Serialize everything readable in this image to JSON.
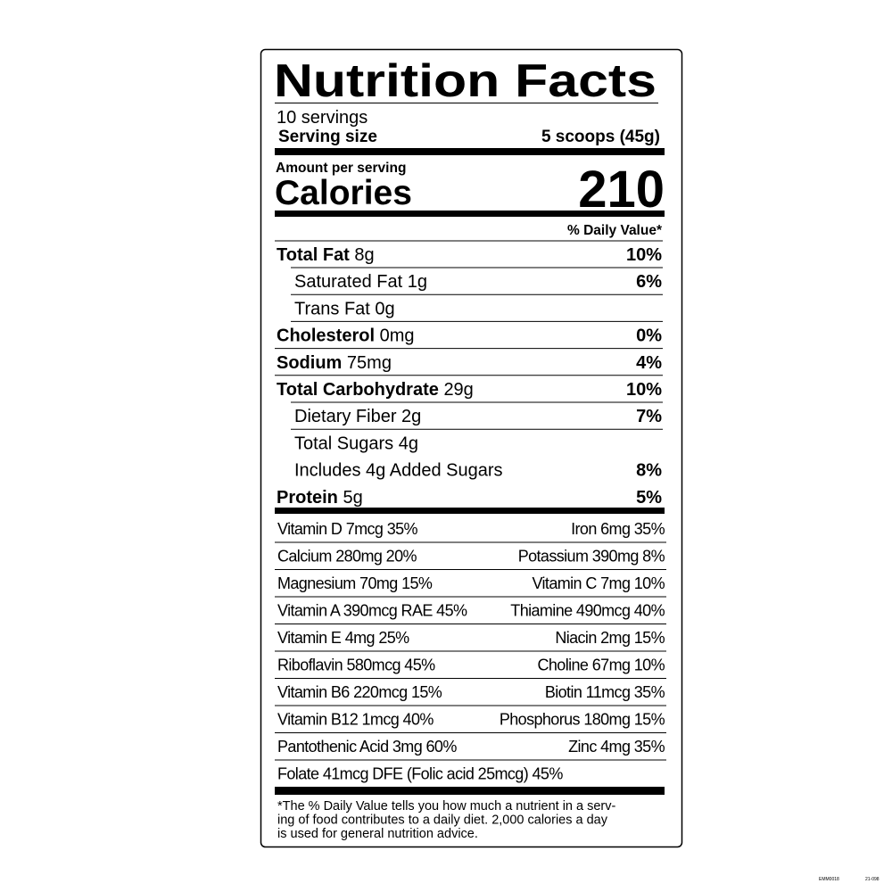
{
  "title": "Nutrition Facts",
  "servings": "10 servings",
  "serving_size": {
    "label": "Serving size",
    "value": "5 scoops (45g)"
  },
  "amount_per_serving": "Amount per serving",
  "calories": {
    "label": "Calories",
    "value": 210
  },
  "dv_header": "% Daily Value*",
  "nutrients": [
    {
      "name": "Total Fat",
      "amount": "8g",
      "dv": "10%",
      "bold": true,
      "indent": false
    },
    {
      "name": "Saturated Fat",
      "amount": "1g",
      "dv": "6%",
      "bold": false,
      "indent": true
    },
    {
      "name": "Trans Fat",
      "amount": "0g",
      "dv": null,
      "bold": false,
      "indent": true
    },
    {
      "name": "Cholesterol",
      "amount": "0mg",
      "dv": "0%",
      "bold": true,
      "indent": false
    },
    {
      "name": "Sodium",
      "amount": "75mg",
      "dv": "4%",
      "bold": true,
      "indent": false
    },
    {
      "name": "Total Carbohydrate",
      "amount": "29g",
      "dv": "10%",
      "bold": true,
      "indent": false
    },
    {
      "name": "Dietary Fiber",
      "amount": "2g",
      "dv": "7%",
      "bold": false,
      "indent": true
    },
    {
      "name": "Total Sugars",
      "amount": "4g",
      "dv": null,
      "bold": false,
      "indent": true
    },
    {
      "name": "Includes 4g Added Sugars",
      "amount": null,
      "dv": "8%",
      "bold": false,
      "indent": true
    },
    {
      "name": "Protein",
      "amount": "5g",
      "dv": "5%",
      "bold": true,
      "indent": false
    }
  ],
  "vitamins": [
    [
      "Vitamin D 7mcg 35%",
      "Iron 6mg 35%"
    ],
    [
      "Calcium 280mg 20%",
      "Potassium 390mg 8%"
    ],
    [
      "Magnesium 70mg 15%",
      "Vitamin C 7mg 10%"
    ],
    [
      "Vitamin A 390mcg RAE 45%",
      "Thiamine 490mcg 40%"
    ],
    [
      "Vitamin E 4mg 25%",
      "Niacin 2mg 15%"
    ],
    [
      "Riboflavin 580mcg 45%",
      "Choline 67mg 10%"
    ],
    [
      "Vitamin B6 220mcg 15%",
      "Biotin 11mcg 35%"
    ],
    [
      "Vitamin B12 1mcg 40%",
      "Phosphorus 180mg 15%"
    ],
    [
      "Pantothenic Acid 3mg 60%",
      "Zinc 4mg 35%"
    ],
    [
      "Folate 41mcg DFE  (Folic acid 25mcg) 45%"
    ]
  ],
  "footnote": [
    "*The % Daily Value tells you how much a nutrient in a serv-",
    "ing of food contributes to a daily diet. 2,000 calories a day",
    "is used for general nutrition advice."
  ],
  "codes": [
    "EMM0018",
    "21-098"
  ]
}
